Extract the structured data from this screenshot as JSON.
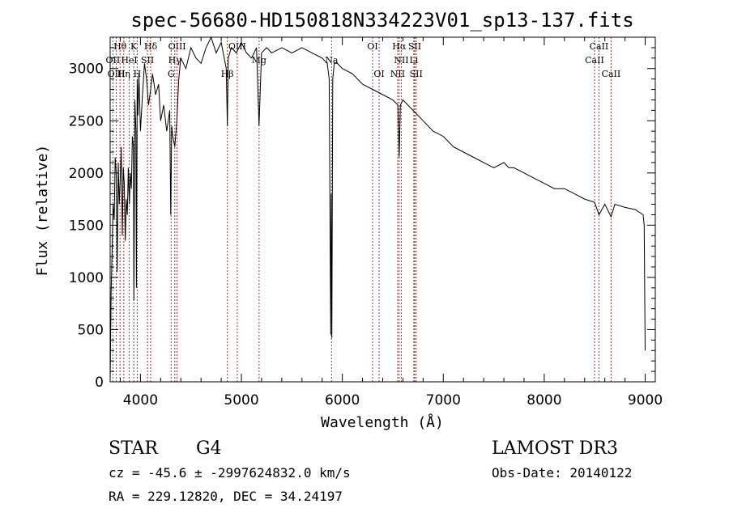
{
  "chart_data": {
    "type": "line",
    "title": "spec-56680-HD150818N334223V01_sp13-137.fits",
    "xlabel": "Wavelength (Å)",
    "ylabel": "Flux (relative)",
    "xlim": [
      3700,
      9100
    ],
    "ylim": [
      0,
      3300
    ],
    "x_ticks": [
      4000,
      5000,
      6000,
      7000,
      8000,
      9000
    ],
    "y_ticks": [
      0,
      500,
      1000,
      1500,
      2000,
      2500,
      3000
    ],
    "grid": false,
    "series": [
      {
        "x": [
          3700,
          3710,
          3720,
          3730,
          3740,
          3750,
          3760,
          3770,
          3780,
          3790,
          3800,
          3810,
          3820,
          3830,
          3840,
          3850,
          3860,
          3870,
          3880,
          3890,
          3900,
          3910,
          3920,
          3930,
          3935,
          3945,
          3955,
          3960,
          3968,
          3975,
          3985,
          4000,
          4020,
          4040,
          4060,
          4080,
          4101,
          4120,
          4150,
          4180,
          4200,
          4230,
          4260,
          4290,
          4300,
          4310,
          4320,
          4340,
          4360,
          4380,
          4400,
          4450,
          4500,
          4550,
          4600,
          4650,
          4700,
          4750,
          4800,
          4830,
          4850,
          4861,
          4870,
          4900,
          4950,
          5000,
          5050,
          5100,
          5150,
          5175,
          5200,
          5250,
          5300,
          5400,
          5500,
          5600,
          5700,
          5800,
          5850,
          5870,
          5885,
          5890,
          5896,
          5905,
          5920,
          5950,
          6000,
          6100,
          6200,
          6300,
          6400,
          6500,
          6550,
          6563,
          6575,
          6600,
          6700,
          6800,
          6900,
          7000,
          7100,
          7200,
          7300,
          7400,
          7500,
          7600,
          7650,
          7700,
          7800,
          7900,
          8000,
          8100,
          8200,
          8300,
          8400,
          8498,
          8542,
          8600,
          8662,
          8700,
          8800,
          8900,
          8980,
          8990,
          9000
        ],
        "y": [
          0,
          850,
          1300,
          1700,
          1550,
          2150,
          2000,
          1050,
          2100,
          1700,
          1950,
          2250,
          1400,
          2050,
          1900,
          1350,
          1750,
          1600,
          2050,
          1700,
          2000,
          1850,
          2350,
          2250,
          780,
          2700,
          2400,
          900,
          2900,
          2550,
          2950,
          2400,
          2750,
          3050,
          2900,
          2650,
          2800,
          2950,
          2750,
          2850,
          2500,
          2650,
          2400,
          2600,
          1600,
          2450,
          2350,
          2250,
          2500,
          2900,
          3100,
          3000,
          3200,
          3100,
          3050,
          3200,
          3300,
          3150,
          3250,
          3100,
          3000,
          2450,
          3100,
          3200,
          3150,
          3250,
          3150,
          3100,
          3200,
          2450,
          3150,
          3200,
          3150,
          3200,
          3150,
          3200,
          3150,
          3100,
          3050,
          2900,
          450,
          1800,
          420,
          2900,
          3050,
          3050,
          3000,
          2950,
          2850,
          2800,
          2750,
          2700,
          2650,
          2150,
          2650,
          2700,
          2600,
          2500,
          2400,
          2350,
          2250,
          2200,
          2150,
          2100,
          2050,
          2100,
          2050,
          2050,
          2000,
          1950,
          1900,
          1850,
          1850,
          1800,
          1750,
          1720,
          1600,
          1700,
          1580,
          1700,
          1670,
          1650,
          1600,
          1500,
          300
        ]
      }
    ],
    "lines": [
      {
        "label": "Hθ",
        "x": 3798,
        "row": 0
      },
      {
        "label": "OII",
        "x": 3727,
        "row": 1
      },
      {
        "label": "OIII",
        "x": 3761,
        "row": 2
      },
      {
        "label": "K",
        "x": 3934,
        "row": 0
      },
      {
        "label": "HeI",
        "x": 3889,
        "row": 1
      },
      {
        "label": "Hη",
        "x": 3835,
        "row": 2
      },
      {
        "label": "SII",
        "x": 4070,
        "row": 1
      },
      {
        "label": "H",
        "x": 3968,
        "row": 2
      },
      {
        "label": "Hδ",
        "x": 4101,
        "row": 0
      },
      {
        "label": "OIII",
        "x": 4363,
        "row": 0
      },
      {
        "label": "Hγ",
        "x": 4340,
        "row": 1
      },
      {
        "label": "G",
        "x": 4304,
        "row": 2
      },
      {
        "label": "OIII",
        "x": 4959,
        "row": 0
      },
      {
        "label": "Mg",
        "x": 5175,
        "row": 1
      },
      {
        "label": "Hβ",
        "x": 4861,
        "row": 2
      },
      {
        "label": "Na",
        "x": 5893,
        "row": 1
      },
      {
        "label": "OI",
        "x": 6300,
        "row": 0
      },
      {
        "label": "OI",
        "x": 6364,
        "row": 2
      },
      {
        "label": "Hα",
        "x": 6563,
        "row": 0
      },
      {
        "label": "SII",
        "x": 6717,
        "row": 0
      },
      {
        "label": "NII",
        "x": 6584,
        "row": 1
      },
      {
        "label": "Li",
        "x": 6708,
        "row": 1
      },
      {
        "label": "NII",
        "x": 6548,
        "row": 2
      },
      {
        "label": "SII",
        "x": 6731,
        "row": 2
      },
      {
        "label": "CaII",
        "x": 8542,
        "row": 0
      },
      {
        "label": "CaII",
        "x": 8498,
        "row": 1
      },
      {
        "label": "CaII",
        "x": 8662,
        "row": 2
      }
    ]
  },
  "info": {
    "class_label": "STAR",
    "subclass": "G4",
    "survey": "LAMOST DR3",
    "cz_text": "cz = -45.6 ± -2997624832.0 km/s",
    "obs_date_text": "Obs-Date: 20140122",
    "coords_text": "RA = 229.12820, DEC =  34.24197"
  }
}
